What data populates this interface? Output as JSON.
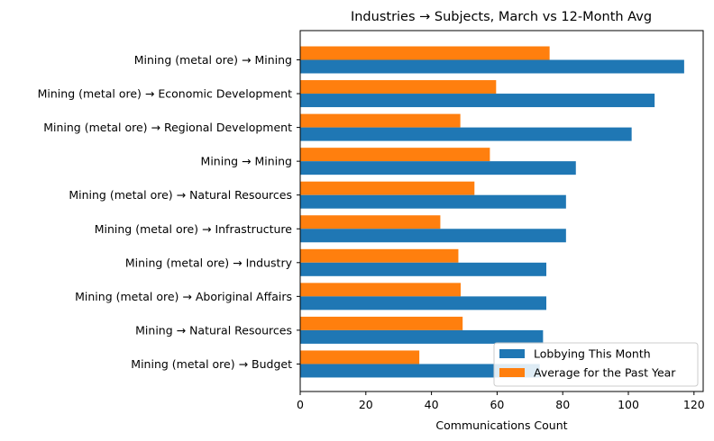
{
  "chart_data": {
    "type": "bar",
    "orientation": "horizontal",
    "title": "Industries → Subjects, March vs 12-Month Avg",
    "xlabel": "Communications Count",
    "ylabel": "",
    "xlim": [
      0,
      122.8
    ],
    "xticks": [
      0,
      20,
      40,
      60,
      80,
      100,
      120
    ],
    "grid": false,
    "legend_position": "lower-right",
    "categories": [
      "Mining (metal ore) → Mining",
      "Mining (metal ore) → Economic Development",
      "Mining (metal ore) → Regional Development",
      "Mining → Mining",
      "Mining (metal ore) → Natural Resources",
      "Mining (metal ore) → Infrastructure",
      "Mining (metal ore) → Industry",
      "Mining (metal ore) → Aboriginal Affairs",
      "Mining → Natural Resources",
      "Mining (metal ore) → Budget"
    ],
    "series": [
      {
        "name": "Lobbying This Month",
        "color": "#1f77b4",
        "values": [
          117,
          108,
          101,
          84,
          81,
          81,
          75,
          75,
          74,
          73
        ]
      },
      {
        "name": "Average for the Past Year",
        "color": "#ff7f0e",
        "values": [
          76,
          59.7,
          48.8,
          57.8,
          53.1,
          42.7,
          48.2,
          48.9,
          49.5,
          36.3
        ]
      }
    ]
  }
}
